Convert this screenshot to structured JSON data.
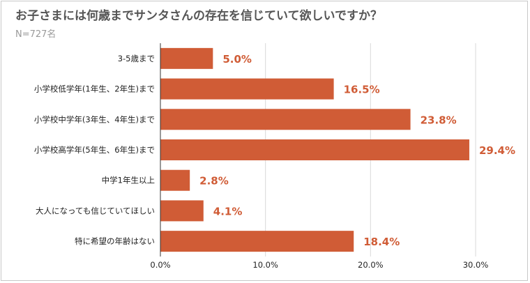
{
  "colors": {
    "bar": "#d05c36",
    "value_label": "#d05c36",
    "grid": "#d9d9d9",
    "axis": "#333333",
    "title": "#555555",
    "subtitle": "#9a9a9a"
  },
  "chart_data": {
    "type": "bar",
    "orientation": "horizontal",
    "title": "お子さまには何歳までサンタさんの存在を信じていて欲しいですか？",
    "subtitle": "N=727名",
    "categories": [
      "3-5歳まで",
      "小学校低学年(1年生、2年生)まで",
      "小学校中学年(3年生、4年生)まで",
      "小学校高学年(5年生、6年生)まで",
      "中学1年生以上",
      "大人になっても信じていてほしい",
      "特に希望の年齢はない"
    ],
    "values": [
      5.0,
      16.5,
      23.8,
      29.4,
      2.8,
      4.1,
      18.4
    ],
    "value_labels": [
      "5.0%",
      "16.5%",
      "23.8%",
      "29.4%",
      "2.8%",
      "4.1%",
      "18.4%"
    ],
    "x_ticks": [
      0,
      10,
      20,
      30
    ],
    "x_tick_labels": [
      "0.0%",
      "10.0%",
      "20.0%",
      "30.0%"
    ],
    "xlim": [
      0,
      30
    ],
    "xlabel": "",
    "ylabel": "",
    "grid": true,
    "legend": "none"
  }
}
